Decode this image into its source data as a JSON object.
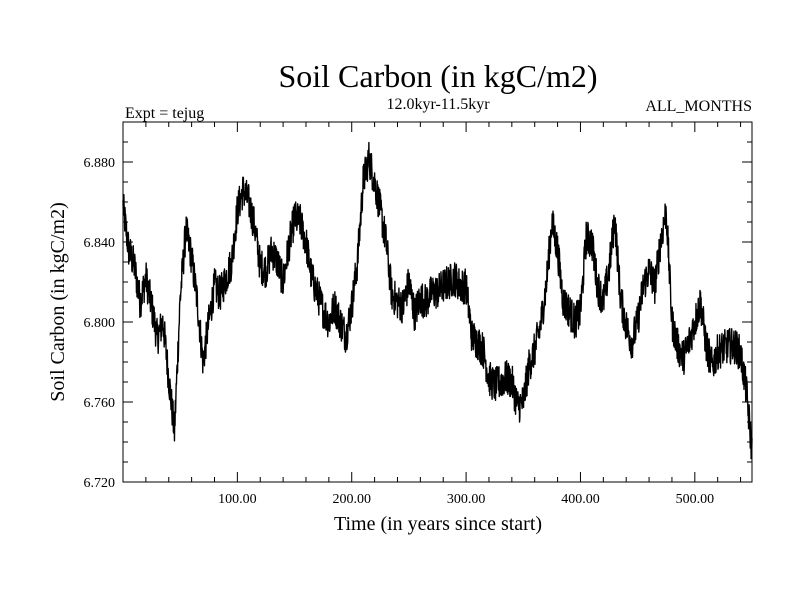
{
  "chart_data": {
    "type": "line",
    "title": "Soil Carbon (in kgC/m2)",
    "subtitle": "12.0kyr-11.5kyr",
    "left_annotation": "Expt = tejug",
    "right_annotation": "ALL_MONTHS",
    "xlabel": "Time (in years since start)",
    "ylabel": "Soil Carbon (in kgC/m2)",
    "xlim": [
      0,
      550
    ],
    "ylim": [
      6.72,
      6.9
    ],
    "xticks": [
      100,
      200,
      300,
      400,
      500
    ],
    "xtick_labels": [
      "100.00",
      "200.00",
      "300.00",
      "400.00",
      "500.00"
    ],
    "yticks": [
      6.72,
      6.76,
      6.8,
      6.84,
      6.88
    ],
    "ytick_labels": [
      "6.720",
      "6.760",
      "6.800",
      "6.840",
      "6.880"
    ],
    "grid": false,
    "series": [
      {
        "name": "Soil Carbon",
        "color": "#000000",
        "x": [
          0,
          5,
          10,
          15,
          20,
          25,
          30,
          35,
          40,
          45,
          50,
          55,
          60,
          65,
          70,
          75,
          80,
          85,
          90,
          95,
          100,
          105,
          110,
          115,
          120,
          125,
          130,
          135,
          140,
          145,
          150,
          155,
          160,
          165,
          170,
          175,
          180,
          185,
          190,
          195,
          200,
          205,
          210,
          215,
          220,
          225,
          230,
          235,
          240,
          245,
          250,
          255,
          260,
          265,
          270,
          275,
          280,
          285,
          290,
          295,
          300,
          305,
          310,
          315,
          320,
          325,
          330,
          335,
          340,
          345,
          350,
          355,
          360,
          365,
          370,
          375,
          380,
          385,
          390,
          395,
          400,
          405,
          410,
          415,
          420,
          425,
          430,
          435,
          440,
          445,
          450,
          455,
          460,
          465,
          470,
          475,
          480,
          485,
          490,
          495,
          500,
          505,
          510,
          515,
          520,
          525,
          530,
          535,
          540,
          545,
          550
        ],
        "values": [
          6.858,
          6.836,
          6.828,
          6.81,
          6.822,
          6.808,
          6.792,
          6.8,
          6.772,
          6.745,
          6.812,
          6.846,
          6.832,
          6.81,
          6.78,
          6.8,
          6.818,
          6.814,
          6.822,
          6.83,
          6.856,
          6.866,
          6.86,
          6.848,
          6.828,
          6.826,
          6.836,
          6.83,
          6.82,
          6.838,
          6.852,
          6.85,
          6.84,
          6.822,
          6.814,
          6.806,
          6.8,
          6.808,
          6.8,
          6.793,
          6.808,
          6.83,
          6.87,
          6.882,
          6.87,
          6.856,
          6.84,
          6.814,
          6.81,
          6.808,
          6.82,
          6.804,
          6.812,
          6.81,
          6.815,
          6.815,
          6.818,
          6.82,
          6.822,
          6.818,
          6.818,
          6.793,
          6.79,
          6.786,
          6.772,
          6.768,
          6.77,
          6.772,
          6.77,
          6.758,
          6.76,
          6.778,
          6.786,
          6.798,
          6.818,
          6.85,
          6.836,
          6.81,
          6.806,
          6.8,
          6.805,
          6.842,
          6.84,
          6.818,
          6.81,
          6.826,
          6.852,
          6.812,
          6.798,
          6.79,
          6.8,
          6.818,
          6.826,
          6.818,
          6.84,
          6.856,
          6.8,
          6.788,
          6.782,
          6.79,
          6.8,
          6.81,
          6.788,
          6.778,
          6.785,
          6.787,
          6.788,
          6.788,
          6.784,
          6.766,
          6.735
        ]
      }
    ]
  }
}
